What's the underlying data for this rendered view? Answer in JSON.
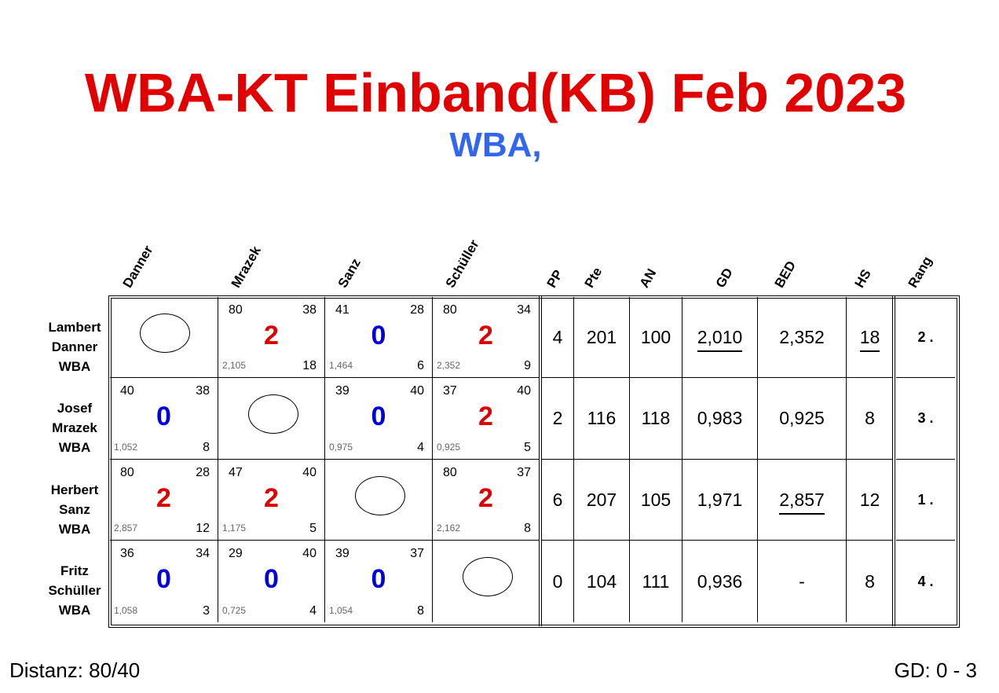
{
  "title": "WBA-KT Einband(KB) Feb 2023",
  "subtitle": "WBA,",
  "colors": {
    "win": "#dd0000",
    "loss": "#0000dd",
    "title": "#e00000",
    "subtitle": "#3366ee"
  },
  "player_headers": [
    "Danner",
    "Mrazek",
    "Sanz",
    "Schüller"
  ],
  "stat_headers": [
    "PP",
    "Pte",
    "AN",
    "GD",
    "BED",
    "HS",
    "Rang"
  ],
  "players": [
    {
      "first": "Lambert",
      "last": "Danner",
      "club": "WBA",
      "results": [
        null,
        {
          "tl": "80",
          "tr": "38",
          "score": "2",
          "gd": "2,105",
          "hs": "18"
        },
        {
          "tl": "41",
          "tr": "28",
          "score": "0",
          "gd": "1,464",
          "hs": "6"
        },
        {
          "tl": "80",
          "tr": "34",
          "score": "2",
          "gd": "2,352",
          "hs": "9"
        }
      ],
      "stats": [
        {
          "v": "4"
        },
        {
          "v": "201"
        },
        {
          "v": "100"
        },
        {
          "v": "2,010",
          "underline": true
        },
        {
          "v": "2,352"
        },
        {
          "v": "18",
          "underline": true
        },
        {
          "v": "2 ."
        }
      ]
    },
    {
      "first": "Josef",
      "last": "Mrazek",
      "club": "WBA",
      "results": [
        {
          "tl": "40",
          "tr": "38",
          "score": "0",
          "gd": "1,052",
          "hs": "8"
        },
        null,
        {
          "tl": "39",
          "tr": "40",
          "score": "0",
          "gd": "0,975",
          "hs": "4"
        },
        {
          "tl": "37",
          "tr": "40",
          "score": "2",
          "gd": "0,925",
          "hs": "5"
        }
      ],
      "stats": [
        {
          "v": "2"
        },
        {
          "v": "116"
        },
        {
          "v": "118"
        },
        {
          "v": "0,983"
        },
        {
          "v": "0,925"
        },
        {
          "v": "8"
        },
        {
          "v": "3 ."
        }
      ]
    },
    {
      "first": "Herbert",
      "last": "Sanz",
      "club": "WBA",
      "results": [
        {
          "tl": "80",
          "tr": "28",
          "score": "2",
          "gd": "2,857",
          "hs": "12"
        },
        {
          "tl": "47",
          "tr": "40",
          "score": "2",
          "gd": "1,175",
          "hs": "5"
        },
        null,
        {
          "tl": "80",
          "tr": "37",
          "score": "2",
          "gd": "2,162",
          "hs": "8"
        }
      ],
      "stats": [
        {
          "v": "6"
        },
        {
          "v": "207"
        },
        {
          "v": "105"
        },
        {
          "v": "1,971"
        },
        {
          "v": "2,857",
          "underline": true
        },
        {
          "v": "12"
        },
        {
          "v": "1 ."
        }
      ]
    },
    {
      "first": "Fritz",
      "last": "Schüller",
      "club": "WBA",
      "results": [
        {
          "tl": "36",
          "tr": "34",
          "score": "0",
          "gd": "1,058",
          "hs": "3"
        },
        {
          "tl": "29",
          "tr": "40",
          "score": "0",
          "gd": "0,725",
          "hs": "4"
        },
        {
          "tl": "39",
          "tr": "37",
          "score": "0",
          "gd": "1,054",
          "hs": "8"
        },
        null
      ],
      "stats": [
        {
          "v": "0"
        },
        {
          "v": "104"
        },
        {
          "v": "111"
        },
        {
          "v": "0,936"
        },
        {
          "v": "-"
        },
        {
          "v": "8"
        },
        {
          "v": "4 ."
        }
      ]
    }
  ],
  "footer": {
    "distance": "Distanz: 80/40",
    "gd": "GD: 0 - 3"
  }
}
